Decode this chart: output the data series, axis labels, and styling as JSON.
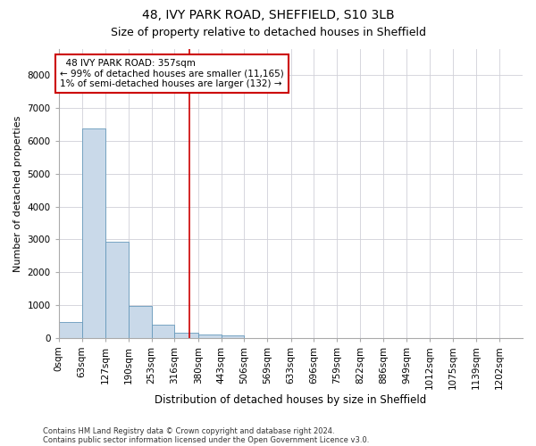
{
  "title_line1": "48, IVY PARK ROAD, SHEFFIELD, S10 3LB",
  "title_line2": "Size of property relative to detached houses in Sheffield",
  "xlabel": "Distribution of detached houses by size in Sheffield",
  "ylabel": "Number of detached properties",
  "footnote1": "Contains HM Land Registry data © Crown copyright and database right 2024.",
  "footnote2": "Contains public sector information licensed under the Open Government Licence v3.0.",
  "annotation_line1": "  48 IVY PARK ROAD: 357sqm  ",
  "annotation_line2": "← 99% of detached houses are smaller (11,165)",
  "annotation_line3": "1% of semi-detached houses are larger (132) →",
  "property_sqm": 357,
  "bar_edges": [
    0,
    63,
    127,
    190,
    253,
    316,
    380,
    443,
    506,
    569,
    633,
    696,
    759,
    822,
    886,
    949,
    1012,
    1075,
    1139,
    1202,
    1265
  ],
  "bar_heights": [
    470,
    6380,
    2920,
    960,
    390,
    150,
    100,
    60,
    0,
    0,
    0,
    0,
    0,
    0,
    0,
    0,
    0,
    0,
    0,
    0
  ],
  "bar_color": "#c9d9e9",
  "bar_edge_color": "#6699bb",
  "vline_color": "#cc0000",
  "vline_x": 357,
  "ylim": [
    0,
    8800
  ],
  "yticks": [
    0,
    1000,
    2000,
    3000,
    4000,
    5000,
    6000,
    7000,
    8000
  ],
  "background_color": "#ffffff",
  "grid_color": "#d0d0d8",
  "annotation_box_color": "#cc0000",
  "title1_fontsize": 10,
  "title2_fontsize": 9,
  "xlabel_fontsize": 8.5,
  "ylabel_fontsize": 8,
  "tick_fontsize": 7.5,
  "annotation_fontsize": 7.5
}
